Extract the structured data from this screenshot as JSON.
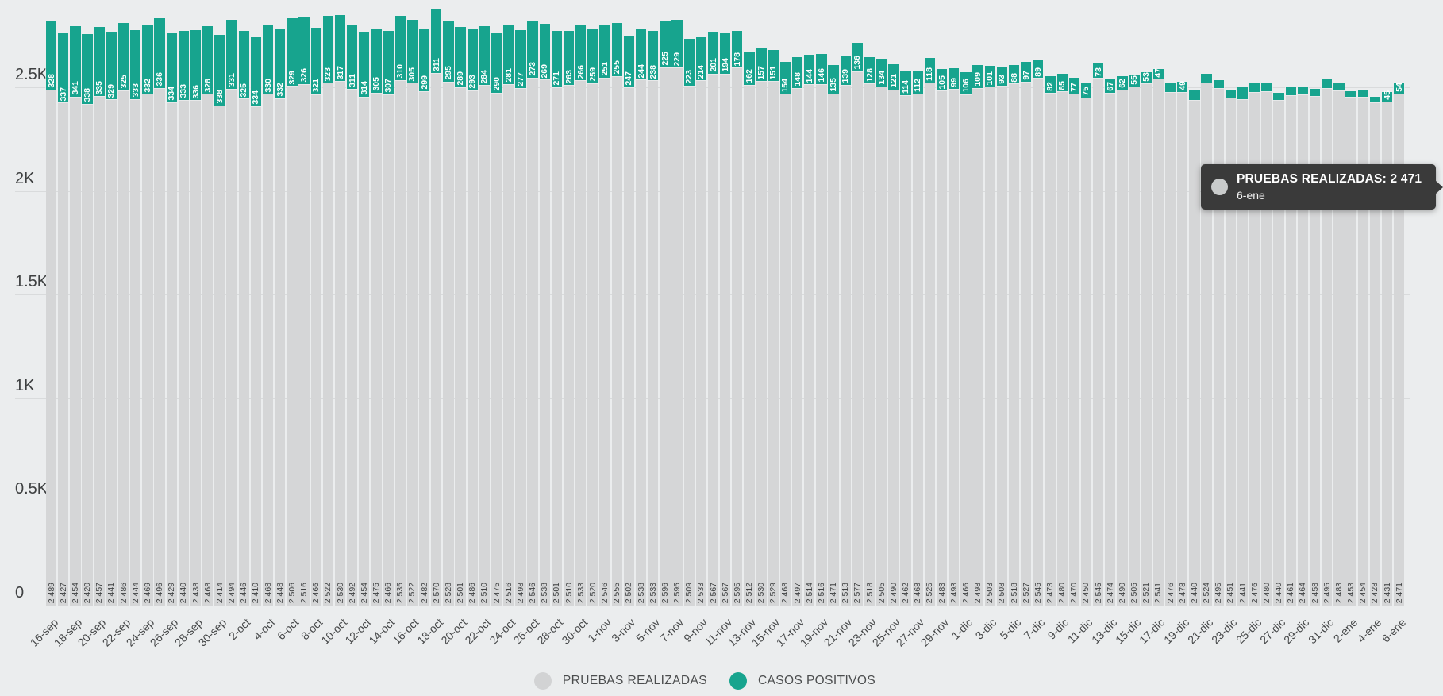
{
  "chart_data": {
    "type": "bar",
    "stacked": true,
    "grid": true,
    "legend_position": "bottom-center",
    "x": [
      "16-sep",
      "17-sep",
      "18-sep",
      "19-sep",
      "20-sep",
      "21-sep",
      "22-sep",
      "23-sep",
      "24-sep",
      "25-sep",
      "26-sep",
      "27-sep",
      "28-sep",
      "29-sep",
      "30-sep",
      "1-oct",
      "2-oct",
      "3-oct",
      "4-oct",
      "5-oct",
      "6-oct",
      "7-oct",
      "8-oct",
      "9-oct",
      "10-oct",
      "11-oct",
      "12-oct",
      "13-oct",
      "14-oct",
      "15-oct",
      "16-oct",
      "17-oct",
      "18-oct",
      "19-oct",
      "20-oct",
      "21-oct",
      "22-oct",
      "23-oct",
      "24-oct",
      "25-oct",
      "26-oct",
      "27-oct",
      "28-oct",
      "29-oct",
      "30-oct",
      "31-oct",
      "1-nov",
      "2-nov",
      "3-nov",
      "4-nov",
      "5-nov",
      "6-nov",
      "7-nov",
      "8-nov",
      "9-nov",
      "10-nov",
      "11-nov",
      "12-nov",
      "13-nov",
      "14-nov",
      "15-nov",
      "16-nov",
      "17-nov",
      "18-nov",
      "19-nov",
      "20-nov",
      "21-nov",
      "22-nov",
      "23-nov",
      "24-nov",
      "25-nov",
      "26-nov",
      "27-nov",
      "28-nov",
      "29-nov",
      "30-nov",
      "1-dic",
      "2-dic",
      "3-dic",
      "4-dic",
      "5-dic",
      "6-dic",
      "7-dic",
      "8-dic",
      "9-dic",
      "10-dic",
      "11-dic",
      "12-dic",
      "13-dic",
      "14-dic",
      "15-dic",
      "16-dic",
      "17-dic",
      "18-dic",
      "19-dic",
      "20-dic",
      "21-dic",
      "22-dic",
      "23-dic",
      "24-dic",
      "25-dic",
      "26-dic",
      "27-dic",
      "28-dic",
      "29-dic",
      "30-dic",
      "31-dic",
      "1-ene",
      "2-ene",
      "3-ene",
      "4-ene",
      "5-ene",
      "6-ene"
    ],
    "x_tick_every": 2,
    "series": [
      {
        "name": "PRUEBAS REALIZADAS",
        "color": "#d5d6d7",
        "values": [
          2489,
          2427,
          2454,
          2420,
          2457,
          2441,
          2486,
          2444,
          2469,
          2496,
          2429,
          2440,
          2438,
          2468,
          2414,
          2494,
          2446,
          2410,
          2468,
          2448,
          2506,
          2516,
          2466,
          2522,
          2530,
          2492,
          2454,
          2475,
          2466,
          2535,
          2522,
          2482,
          2570,
          2528,
          2501,
          2486,
          2510,
          2475,
          2516,
          2498,
          2546,
          2538,
          2501,
          2510,
          2533,
          2520,
          2546,
          2555,
          2502,
          2538,
          2533,
          2596,
          2595,
          2509,
          2533,
          2567,
          2567,
          2595,
          2512,
          2530,
          2529,
          2468,
          2497,
          2514,
          2516,
          2471,
          2513,
          2577,
          2518,
          2505,
          2490,
          2462,
          2468,
          2525,
          2483,
          2493,
          2466,
          2498,
          2503,
          2508,
          2518,
          2527,
          2545,
          2473,
          2480,
          2470,
          2450,
          2545,
          2474,
          2490,
          2505,
          2521,
          2541,
          2476,
          2478,
          2440,
          2524,
          2495,
          2451,
          2441,
          2476,
          2480,
          2440,
          2461,
          2464,
          2458,
          2495,
          2483,
          2453,
          2454,
          2428,
          2431,
          2471
        ]
      },
      {
        "name": "CASOS POSITIVOS",
        "color": "#17a48e",
        "values": [
          328,
          337,
          341,
          338,
          335,
          329,
          325,
          333,
          332,
          336,
          334,
          333,
          336,
          328,
          338,
          331,
          325,
          334,
          330,
          332,
          329,
          326,
          321,
          323,
          317,
          311,
          314,
          305,
          307,
          310,
          305,
          299,
          311,
          295,
          289,
          293,
          284,
          290,
          281,
          277,
          273,
          269,
          271,
          263,
          266,
          259,
          251,
          255,
          247,
          244,
          238,
          225,
          229,
          223,
          214,
          201,
          194,
          178,
          162,
          157,
          151,
          154,
          148,
          144,
          146,
          135,
          139,
          136,
          128,
          134,
          121,
          114,
          112,
          118,
          105,
          99,
          106,
          109,
          101,
          93,
          88,
          97,
          89,
          82,
          85,
          77,
          75,
          73,
          67,
          62,
          55,
          53,
          47,
          44,
          49,
          45,
          42,
          40,
          37,
          60,
          42,
          40,
          32,
          40,
          38,
          35,
          45,
          38,
          30,
          36,
          28,
          45,
          54
        ]
      }
    ],
    "positive_labels_hidden_at": [
      93,
      95,
      96,
      97,
      98,
      99,
      100,
      101,
      102,
      103,
      104,
      105,
      106,
      107,
      108,
      109,
      110
    ],
    "y_axis": {
      "max_units": 2920,
      "ticks": [
        {
          "value": 0,
          "label": "0"
        },
        {
          "value": 500,
          "label": "0.5K"
        },
        {
          "value": 1000,
          "label": "1K"
        },
        {
          "value": 1500,
          "label": "1.5K"
        },
        {
          "value": 2000,
          "label": "2K"
        },
        {
          "value": 2500,
          "label": "2.5K"
        }
      ]
    }
  },
  "tooltip": {
    "text": "PRUEBAS REALIZADAS: 2 471",
    "date": "6-ene"
  },
  "legend": {
    "items": [
      {
        "label": "PRUEBAS REALIZADAS",
        "color": "#d2d3d4"
      },
      {
        "label": "CASOS POSITIVOS",
        "color": "#17a48e"
      }
    ]
  }
}
